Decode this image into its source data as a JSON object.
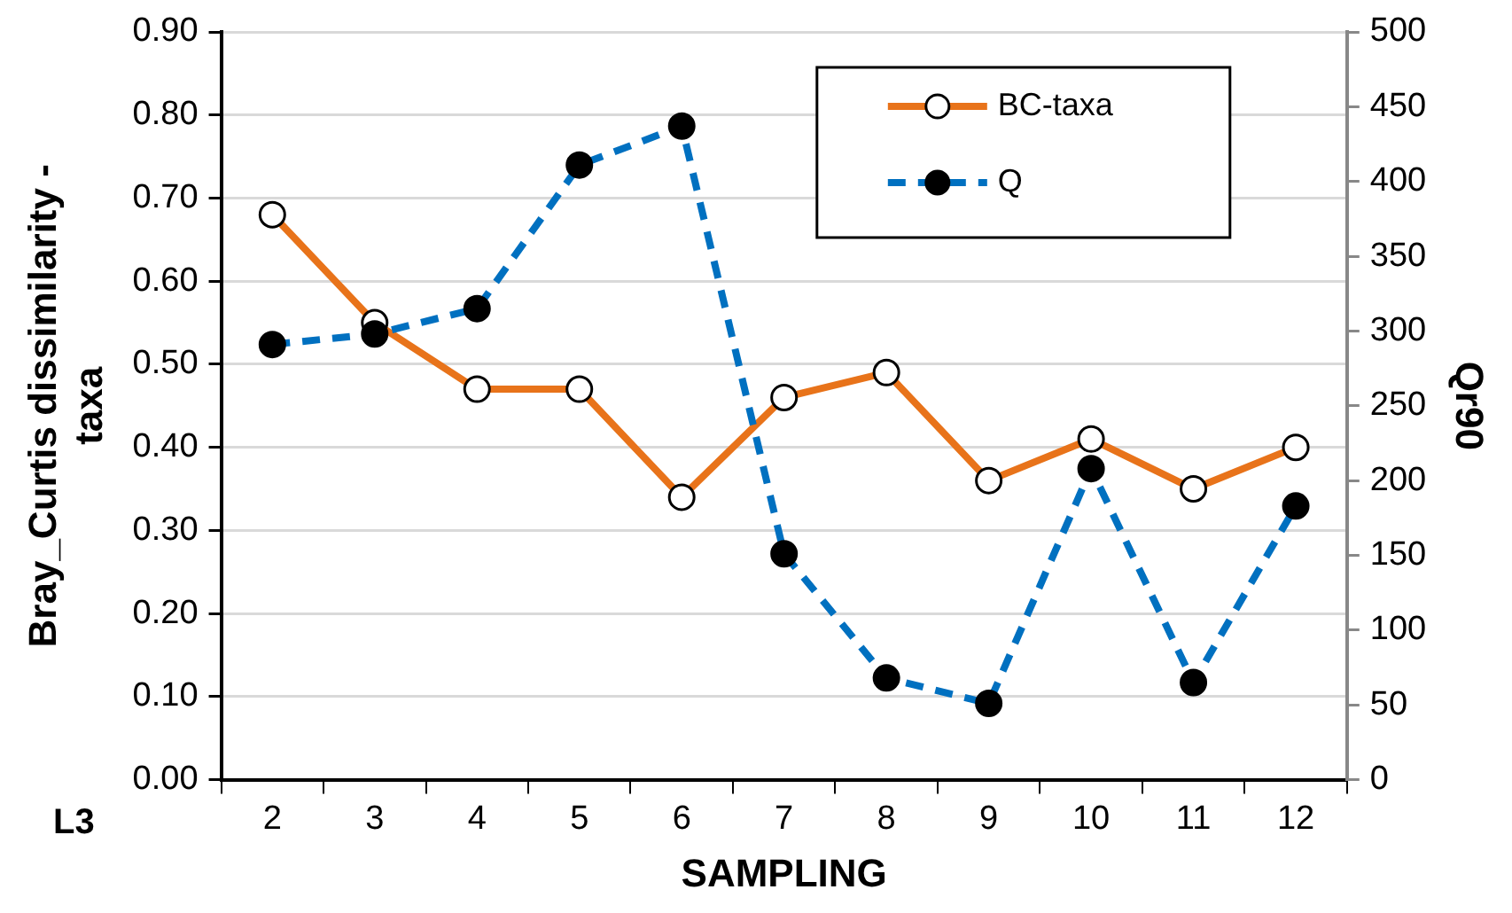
{
  "chart_data": {
    "type": "line",
    "xlabel": "SAMPLING",
    "ylabel": "Bray_Curtis dissimilarity - taxa",
    "y2label": "Qr90",
    "categories": [
      "2",
      "3",
      "4",
      "5",
      "6",
      "7",
      "8",
      "9",
      "10",
      "11",
      "12"
    ],
    "series": [
      {
        "name": "BC-taxa",
        "color": "#e8731a",
        "values": [
          0.68,
          0.55,
          0.47,
          0.47,
          0.34,
          0.46,
          0.49,
          0.36,
          0.41,
          0.35,
          0.4
        ],
        "line_style": "solid"
      },
      {
        "name": "Q",
        "color": "#0070c0",
        "axis": "y2",
        "values": [
          291,
          298,
          315,
          411,
          437,
          151,
          68,
          51,
          208,
          65,
          183
        ],
        "line_style": "dashed"
      }
    ],
    "ylim": [
      0,
      0.9
    ],
    "yticks": [
      {
        "value": 0,
        "label": "0.00"
      },
      {
        "value": 0.1,
        "label": "0.10"
      },
      {
        "value": 0.2,
        "label": "0.20"
      },
      {
        "value": 0.3,
        "label": "0.30"
      },
      {
        "value": 0.4,
        "label": "0.40"
      },
      {
        "value": 0.5,
        "label": "0.50"
      },
      {
        "value": 0.6,
        "label": "0.60"
      },
      {
        "value": 0.7,
        "label": "0.70"
      },
      {
        "value": 0.8,
        "label": "0.80"
      },
      {
        "value": 0.9,
        "label": "0.90"
      }
    ],
    "y2lim": [
      0,
      500
    ],
    "y2ticks": [
      0,
      50,
      100,
      150,
      200,
      250,
      300,
      350,
      400,
      450,
      500
    ],
    "grid": "y",
    "legend": "top right",
    "marker": "circle",
    "annotations": [
      "L3"
    ]
  }
}
